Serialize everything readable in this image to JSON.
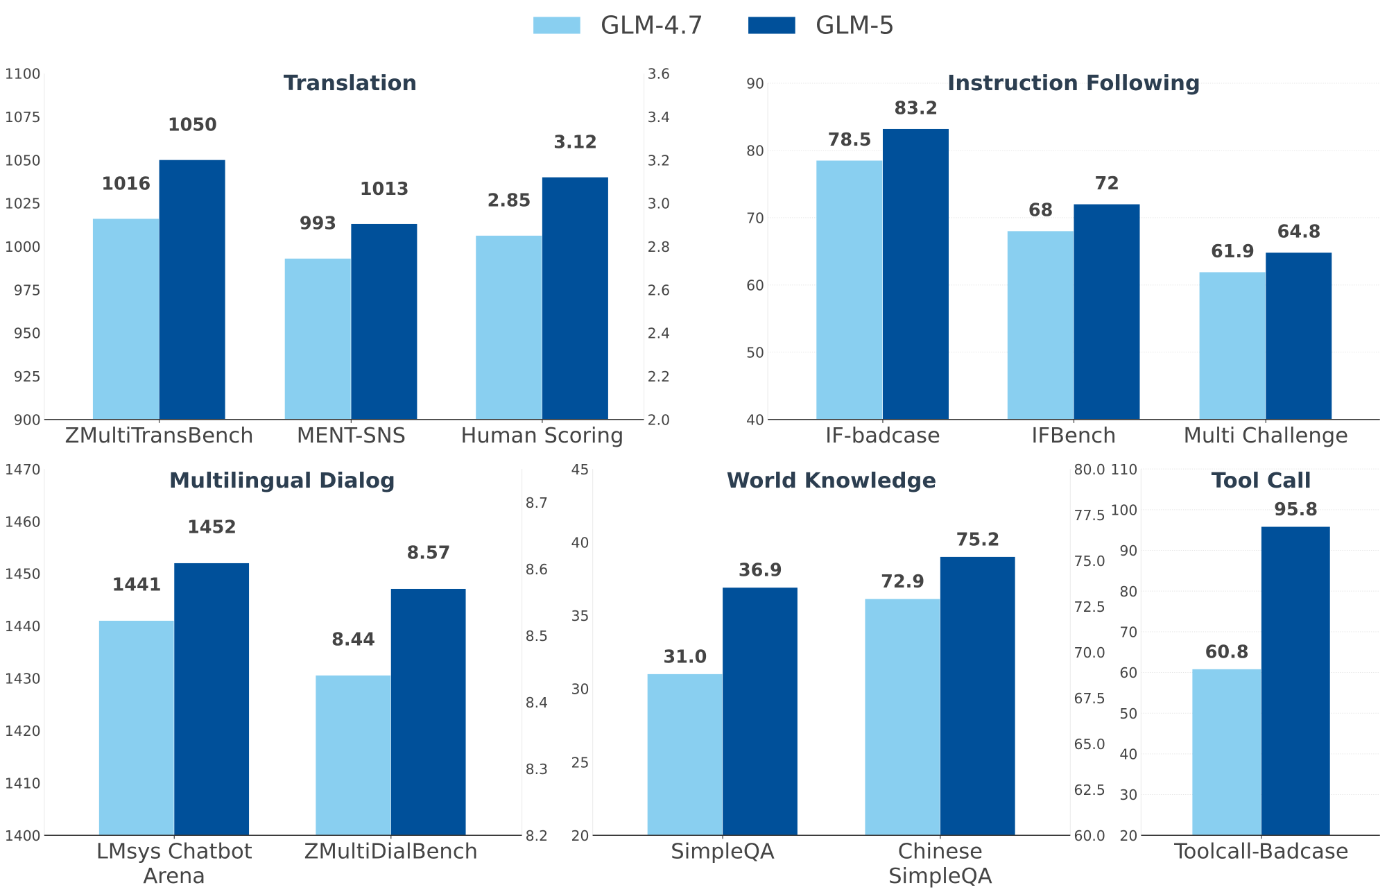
{
  "legend": [
    {
      "name": "GLM-4.7",
      "color": "#89CFF0"
    },
    {
      "name": "GLM-5",
      "color": "#00509A"
    }
  ],
  "chart_data": [
    {
      "type": "bar",
      "title": "Translation",
      "categories": [
        "ZMultiTransBench",
        "MENT-SNS",
        "Human Scoring"
      ],
      "value_axis": [
        "left",
        "left",
        "right"
      ],
      "left_axis": {
        "ylim": [
          900,
          1100
        ],
        "ticks": [
          "900",
          "925",
          "950",
          "975",
          "1000",
          "1025",
          "1050",
          "1075",
          "1100"
        ]
      },
      "right_axis": {
        "ylim": [
          2.0,
          3.6
        ],
        "ticks": [
          "2.0",
          "2.2",
          "2.4",
          "2.6",
          "2.8",
          "3.0",
          "3.2",
          "3.4",
          "3.6"
        ]
      },
      "series": [
        {
          "name": "GLM-4.7",
          "values": [
            1016,
            993,
            2.85
          ],
          "labels": [
            "1016",
            "993",
            "2.85"
          ]
        },
        {
          "name": "GLM-5",
          "values": [
            1050,
            1013,
            3.12
          ],
          "labels": [
            "1050",
            "1013",
            "3.12"
          ]
        }
      ],
      "grid": false
    },
    {
      "type": "bar",
      "title": "Instruction Following",
      "categories": [
        "IF-badcase",
        "IFBench",
        "Multi Challenge"
      ],
      "value_axis": [
        "left",
        "left",
        "left"
      ],
      "left_axis": {
        "ylim": [
          40,
          90
        ],
        "ticks": [
          "40",
          "50",
          "60",
          "70",
          "80",
          "90"
        ]
      },
      "series": [
        {
          "name": "GLM-4.7",
          "values": [
            78.5,
            68,
            61.9
          ],
          "labels": [
            "78.5",
            "68",
            "61.9"
          ]
        },
        {
          "name": "GLM-5",
          "values": [
            83.2,
            72,
            64.8
          ],
          "labels": [
            "83.2",
            "72",
            "64.8"
          ]
        }
      ],
      "grid": true
    },
    {
      "type": "bar",
      "title": "Multilingual Dialog",
      "categories": [
        "LMsys Chatbot\nArena",
        "ZMultiDialBench"
      ],
      "value_axis": [
        "left",
        "right"
      ],
      "left_axis": {
        "ylim": [
          1400,
          1470
        ],
        "ticks": [
          "1400",
          "1410",
          "1420",
          "1430",
          "1440",
          "1450",
          "1460",
          "1470"
        ]
      },
      "right_axis": {
        "ylim": [
          8.2,
          8.75
        ],
        "ticks": [
          "8.2",
          "8.3",
          "8.4",
          "8.5",
          "8.6",
          "8.7"
        ]
      },
      "series": [
        {
          "name": "GLM-4.7",
          "values": [
            1441,
            8.44
          ],
          "labels": [
            "1441",
            "8.44"
          ]
        },
        {
          "name": "GLM-5",
          "values": [
            1452,
            8.57
          ],
          "labels": [
            "1452",
            "8.57"
          ]
        }
      ],
      "grid": false
    },
    {
      "type": "bar",
      "title": "World Knowledge",
      "categories": [
        "SimpleQA",
        "Chinese\nSimpleQA"
      ],
      "value_axis": [
        "left",
        "right"
      ],
      "left_axis": {
        "ylim": [
          20,
          45
        ],
        "ticks": [
          "20",
          "25",
          "30",
          "35",
          "40",
          "45"
        ]
      },
      "right_axis": {
        "ylim": [
          60,
          80
        ],
        "ticks": [
          "60.0",
          "62.5",
          "65.0",
          "67.5",
          "70.0",
          "72.5",
          "75.0",
          "77.5",
          "80.0"
        ]
      },
      "series": [
        {
          "name": "GLM-4.7",
          "values": [
            31.0,
            72.9
          ],
          "labels": [
            "31.0",
            "72.9"
          ]
        },
        {
          "name": "GLM-5",
          "values": [
            36.9,
            75.2
          ],
          "labels": [
            "36.9",
            "75.2"
          ]
        }
      ],
      "grid": false
    },
    {
      "type": "bar",
      "title": "Tool Call",
      "categories": [
        "Toolcall-Badcase"
      ],
      "value_axis": [
        "left"
      ],
      "left_axis": {
        "ylim": [
          20,
          110
        ],
        "ticks": [
          "20",
          "30",
          "40",
          "50",
          "60",
          "70",
          "80",
          "90",
          "100",
          "110"
        ]
      },
      "series": [
        {
          "name": "GLM-4.7",
          "values": [
            60.8
          ],
          "labels": [
            "60.8"
          ]
        },
        {
          "name": "GLM-5",
          "values": [
            95.8
          ],
          "labels": [
            "95.8"
          ]
        }
      ],
      "grid": true
    }
  ]
}
